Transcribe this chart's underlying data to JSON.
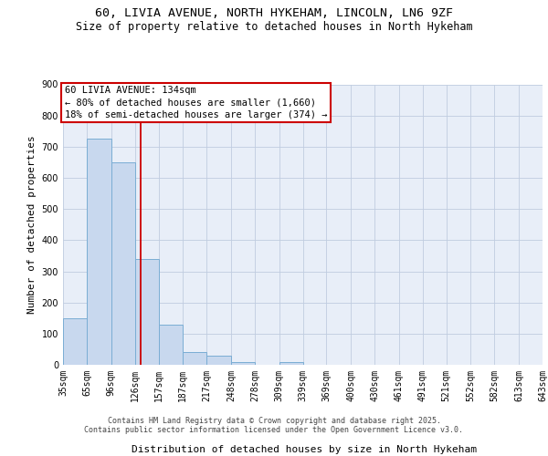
{
  "title_line1": "60, LIVIA AVENUE, NORTH HYKEHAM, LINCOLN, LN6 9ZF",
  "title_line2": "Size of property relative to detached houses in North Hykeham",
  "xlabel": "Distribution of detached houses by size in North Hykeham",
  "ylabel": "Number of detached properties",
  "bar_values": [
    150,
    725,
    650,
    340,
    130,
    40,
    30,
    10,
    0,
    8,
    0,
    0,
    0,
    0,
    0,
    0,
    0,
    0,
    0,
    0
  ],
  "bin_edges": [
    35,
    65,
    96,
    126,
    157,
    187,
    217,
    248,
    278,
    309,
    339,
    369,
    400,
    430,
    461,
    491,
    521,
    552,
    582,
    613,
    643
  ],
  "bar_color": "#c8d8ee",
  "bar_edge_color": "#7aadd4",
  "property_size": 134,
  "vline_color": "#cc0000",
  "annotation_text": "60 LIVIA AVENUE: 134sqm\n← 80% of detached houses are smaller (1,660)\n18% of semi-detached houses are larger (374) →",
  "annotation_box_color": "#ffffff",
  "annotation_border_color": "#cc0000",
  "ylim": [
    0,
    900
  ],
  "yticks": [
    0,
    100,
    200,
    300,
    400,
    500,
    600,
    700,
    800,
    900
  ],
  "background_color": "#e8eef8",
  "grid_color": "#c0cce0",
  "footer_text": "Contains HM Land Registry data © Crown copyright and database right 2025.\nContains public sector information licensed under the Open Government Licence v3.0.",
  "title_fontsize": 9.5,
  "subtitle_fontsize": 8.5,
  "ylabel_fontsize": 8,
  "xlabel_fontsize": 8,
  "tick_fontsize": 7,
  "annotation_fontsize": 7.5,
  "footer_fontsize": 6
}
